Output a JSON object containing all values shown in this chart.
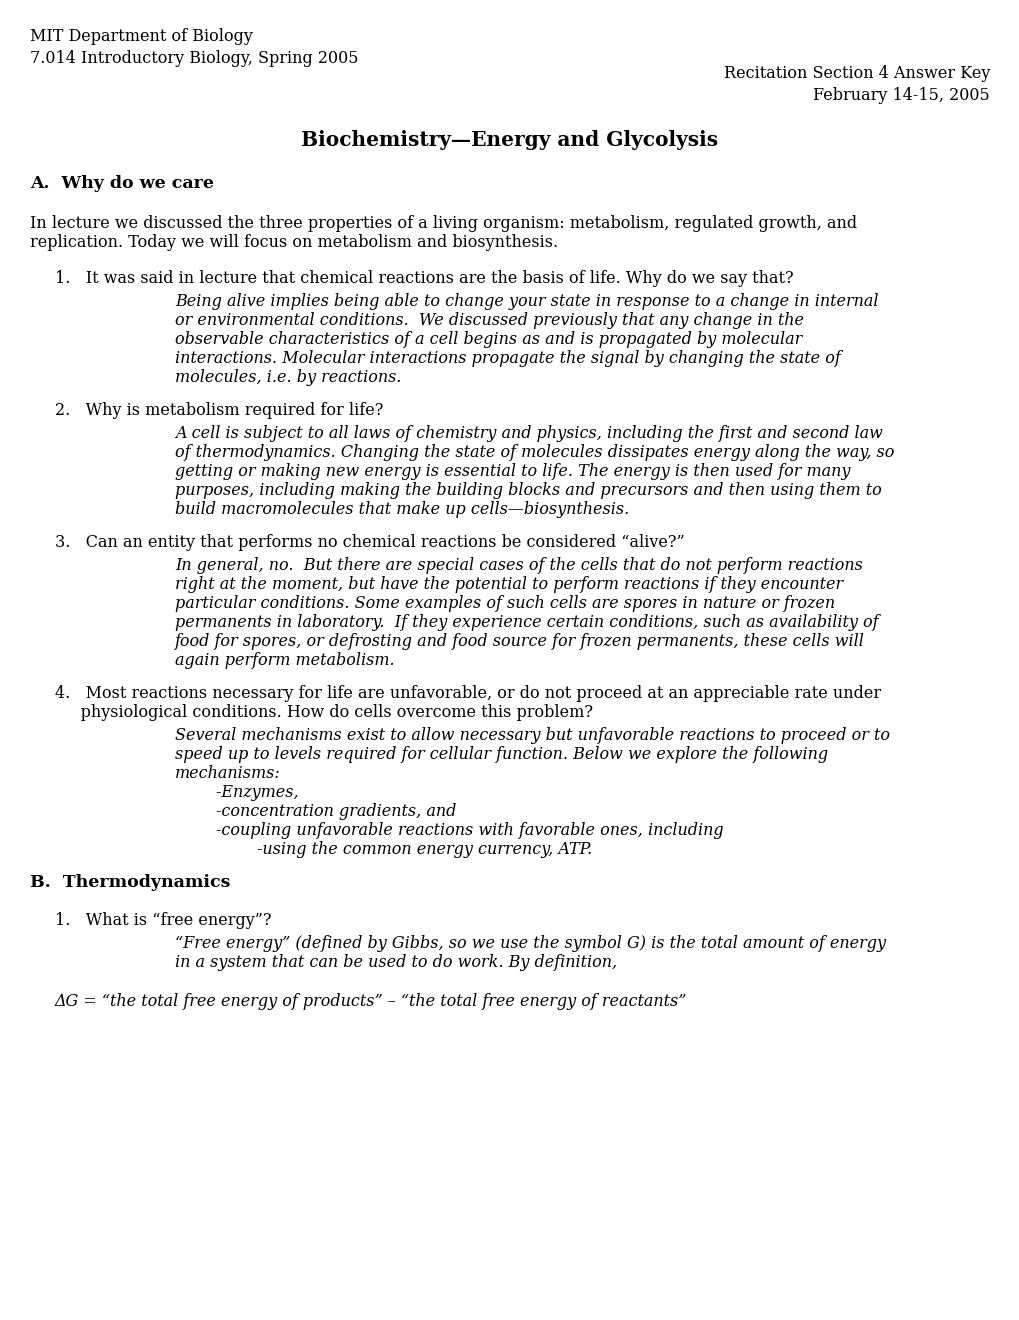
{
  "background_color": "#ffffff",
  "top_left_line1": "MIT Department of Biology",
  "top_left_line2": "7.014 Introductory Biology, Spring 2005",
  "top_right_line1": "Recitation Section 4 Answer Key",
  "top_right_line2": "February 14-15, 2005",
  "main_title": "Biochemistry—Energy and Glycolysis",
  "section_a_title": "A.  Why do we care",
  "section_a_intro1": "In lecture we discussed the three properties of a living organism: metabolism, regulated growth, and",
  "section_a_intro2": "replication. Today we will focus on metabolism and biosynthesis.",
  "q1_text": "1.   It was said in lecture that chemical reactions are the basis of life. Why do we say that?",
  "q1_answer": "Being alive implies being able to change your state in response to a change in internal\nor environmental conditions.  We discussed previously that any change in the\nobservable characteristics of a cell begins as and is propagated by molecular\ninteractions. Molecular interactions propagate the signal by changing the state of\nmolecules, i.e. by reactions.",
  "q2_text": "2.   Why is metabolism required for life?",
  "q2_answer": "A cell is subject to all laws of chemistry and physics, including the first and second law\nof thermodynamics. Changing the state of molecules dissipates energy along the way, so\ngetting or making new energy is essential to life. The energy is then used for many\npurposes, including making the building blocks and precursors and then using them to\nbuild macromolecules that make up cells—biosynthesis.",
  "q3_text": "3.   Can an entity that performs no chemical reactions be considered “alive?”",
  "q3_answer": "In general, no.  But there are special cases of the cells that do not perform reactions\nright at the moment, but have the potential to perform reactions if they encounter\nparticular conditions. Some examples of such cells are spores in nature or frozen\npermanents in laboratory.  If they experience certain conditions, such as availability of\nfood for spores, or defrosting and food source for frozen permanents, these cells will\nagain perform metabolism.",
  "q4_text1": "4.   Most reactions necessary for life are unfavorable, or do not proceed at an appreciable rate under",
  "q4_text2": "     physiological conditions. How do cells overcome this problem?",
  "q4_answer": "Several mechanisms exist to allow necessary but unfavorable reactions to proceed or to\nspeed up to levels required for cellular function. Below we explore the following\nmechanisms:\n        -Enzymes,\n        -concentration gradients, and\n        -coupling unfavorable reactions with favorable ones, including\n                -using the common energy currency, ATP.",
  "section_b_title": "B.  Thermodynamics",
  "q5_text": "1.   What is “free energy”?",
  "q5_answer": "“Free energy” (defined by Gibbs, so we use the symbol G) is the total amount of energy\nin a system that can be used to do work. By definition,",
  "q6_text": "ΔG = “the total free energy of products” – “the total free energy of reactants”",
  "font_size_header": 11.5,
  "font_size_title": 14.5,
  "font_size_section": 12.5,
  "font_size_body": 11.5
}
